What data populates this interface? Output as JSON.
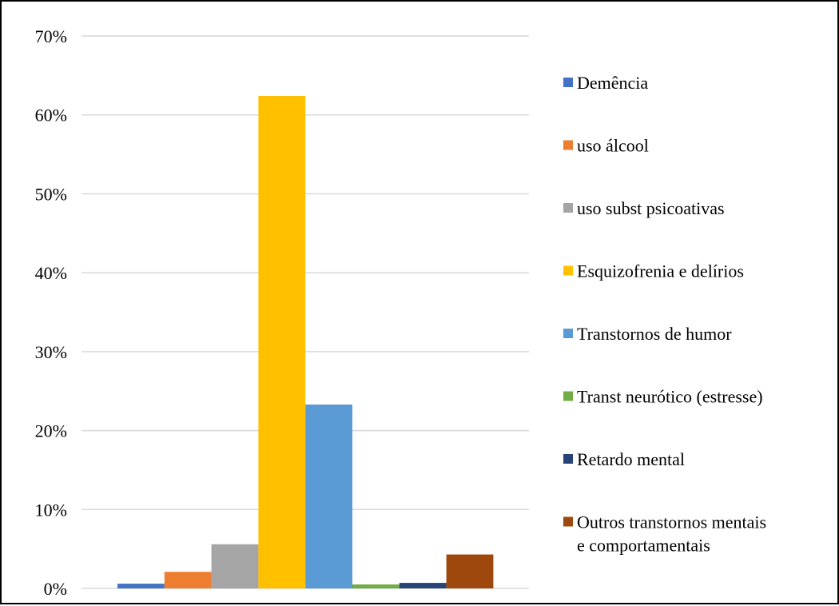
{
  "chart_data": {
    "type": "bar",
    "ylim": [
      0,
      70
    ],
    "yticks": [
      0,
      10,
      20,
      30,
      40,
      50,
      60,
      70
    ],
    "ytick_suffix": "%",
    "grid": true,
    "legend_position": "right",
    "series": [
      {
        "name": "Demência",
        "value": 0.6,
        "color": "#4472C4"
      },
      {
        "name": " uso álcool",
        "value": 2.1,
        "color": "#ED7D31"
      },
      {
        "name": "uso subst psicoativas",
        "value": 5.6,
        "color": "#A5A5A5"
      },
      {
        "name": "Esquizofrenia e delírios",
        "value": 62.4,
        "color": "#FFC000"
      },
      {
        "name": "Transtornos de humor",
        "value": 23.3,
        "color": "#5B9BD5"
      },
      {
        "name": "Transt neurótico  (estresse)",
        "value": 0.5,
        "color": "#70AD47"
      },
      {
        "name": "Retardo mental",
        "value": 0.7,
        "color": "#264478"
      },
      {
        "name": "Outros transtornos mentais e comportamentais",
        "value": 4.3,
        "color": "#9E480E",
        "label_lines": [
          "Outros transtornos mentais",
          "e comportamentais"
        ]
      }
    ]
  }
}
